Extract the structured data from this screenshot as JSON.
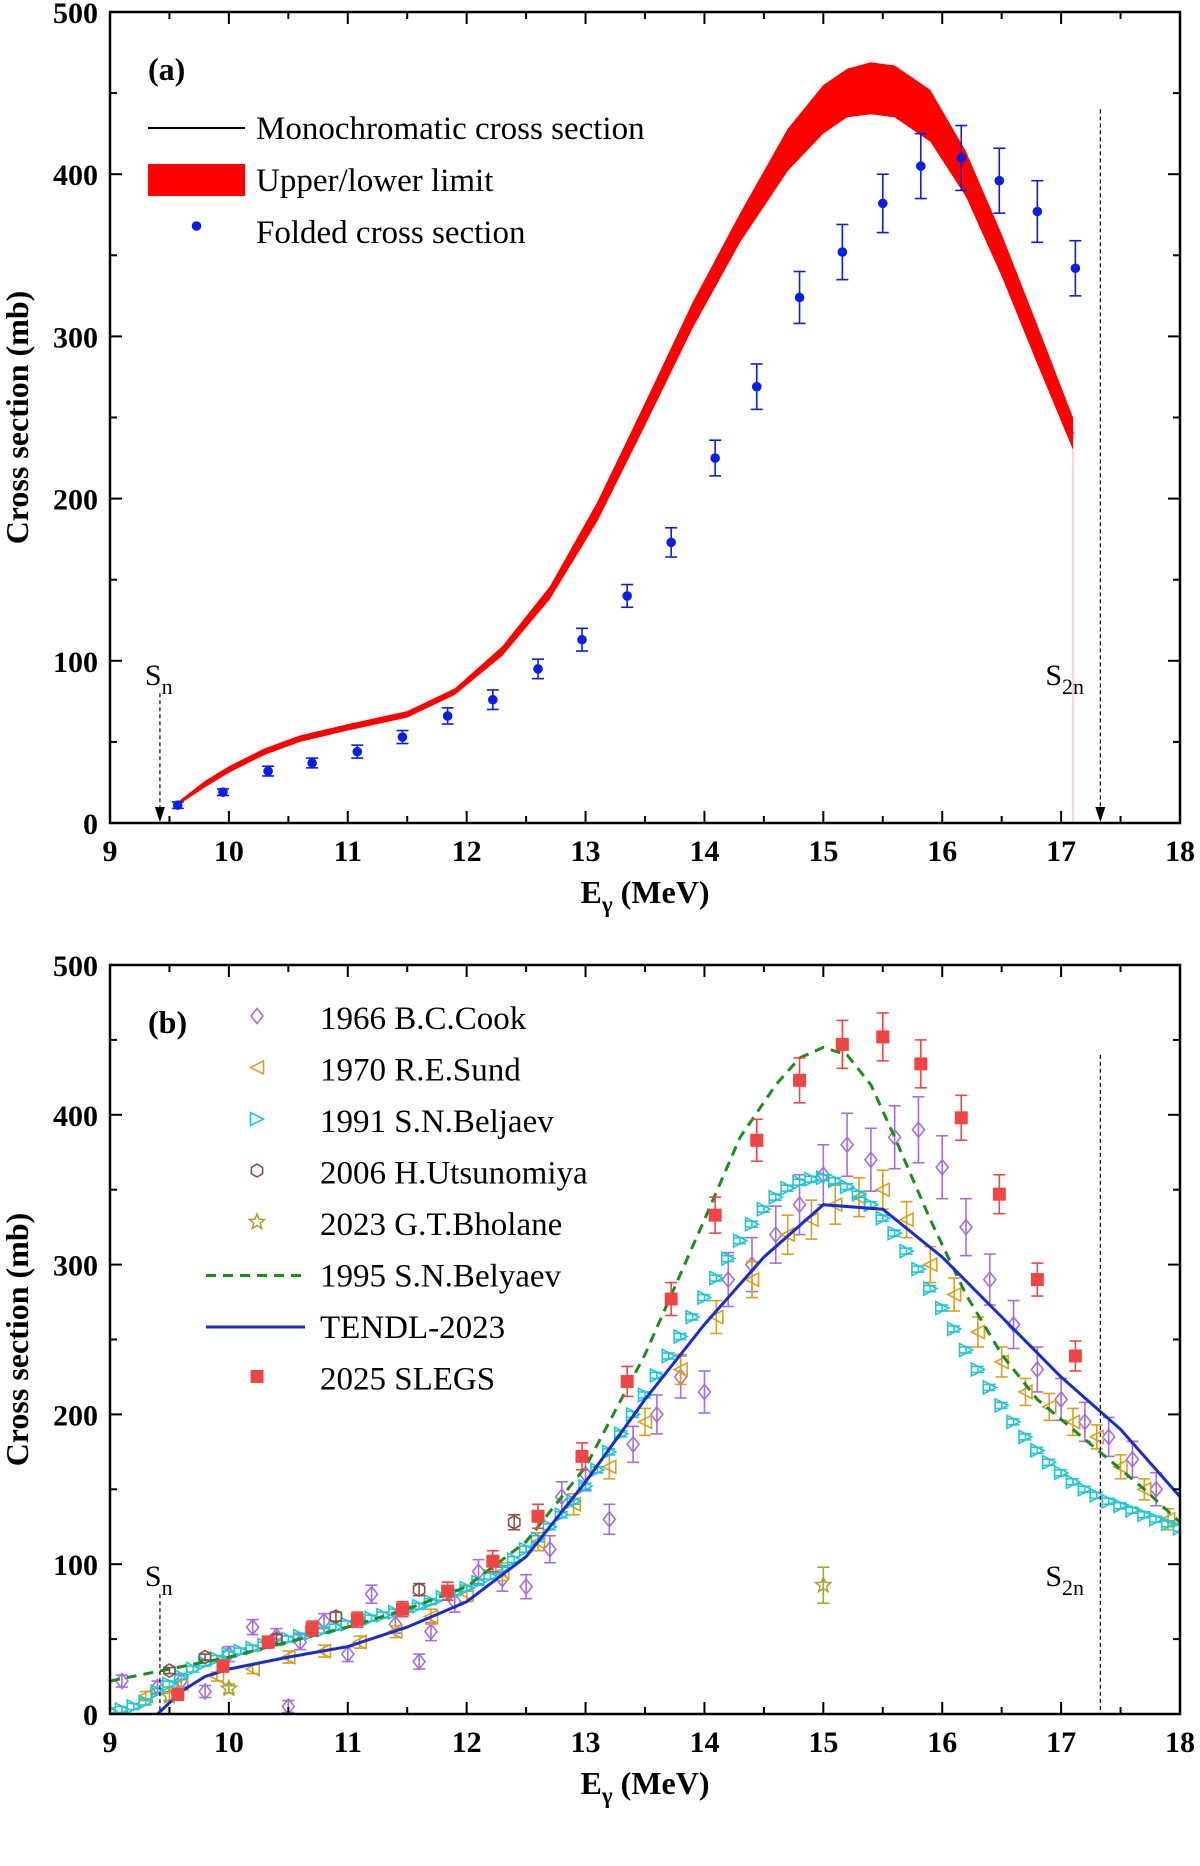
{
  "chart_data": [
    {
      "type": "line",
      "panel_label": "(a)",
      "xlabel": "E",
      "xlabel_sub": "γ",
      "xlabel_unit": " (MeV)",
      "ylabel": "Cross section (mb)",
      "xlim": [
        9,
        18
      ],
      "ylim": [
        0,
        500
      ],
      "xticks": [
        9,
        10,
        11,
        12,
        13,
        14,
        15,
        16,
        17,
        18
      ],
      "yticks": [
        0,
        100,
        200,
        300,
        400,
        500
      ],
      "legend_position": "top-left",
      "series": [
        {
          "name": "Monochromatic cross section",
          "style": "line",
          "color": "#000000",
          "x": [
            9.57,
            9.8,
            10.0,
            10.3,
            10.6,
            11.0,
            11.5,
            11.9,
            12.3,
            12.7,
            13.1,
            13.5,
            13.9,
            14.3,
            14.7,
            15.0,
            15.2,
            15.4,
            15.6,
            15.9,
            16.2,
            16.5,
            16.8,
            17.1
          ],
          "y": [
            12,
            24,
            33,
            44,
            52,
            59,
            67,
            81,
            106,
            142,
            192,
            252,
            313,
            367,
            415,
            440,
            450,
            453,
            451,
            436,
            400,
            350,
            295,
            240
          ]
        },
        {
          "name": "Upper/lower limit",
          "style": "band",
          "color": "#ff0000",
          "x": [
            9.57,
            9.8,
            10.0,
            10.3,
            10.6,
            11.0,
            11.5,
            11.9,
            12.3,
            12.7,
            13.1,
            13.5,
            13.9,
            14.3,
            14.7,
            15.0,
            15.2,
            15.4,
            15.6,
            15.9,
            16.2,
            16.5,
            16.8,
            17.1
          ],
          "lower": [
            11,
            22,
            31,
            42,
            50,
            57,
            65,
            79,
            103,
            138,
            186,
            245,
            305,
            358,
            402,
            425,
            435,
            437,
            435,
            420,
            386,
            337,
            283,
            230
          ],
          "upper": [
            13,
            26,
            35,
            46,
            54,
            61,
            69,
            83,
            109,
            146,
            198,
            259,
            321,
            376,
            428,
            455,
            465,
            469,
            467,
            452,
            414,
            363,
            307,
            250
          ]
        },
        {
          "name": "Folded cross section",
          "style": "points-errorbar",
          "color": "#0a1ee6",
          "x": [
            9.57,
            9.95,
            10.33,
            10.7,
            11.08,
            11.46,
            11.84,
            12.22,
            12.6,
            12.97,
            13.35,
            13.72,
            14.09,
            14.44,
            14.8,
            15.16,
            15.5,
            15.82,
            16.16,
            16.48,
            16.8,
            17.12
          ],
          "y": [
            11,
            19,
            32,
            37,
            44,
            53,
            66,
            76,
            95,
            113,
            140,
            173,
            225,
            269,
            324,
            352,
            382,
            405,
            410,
            396,
            377,
            342
          ],
          "err": [
            2,
            2,
            3,
            3,
            4,
            4,
            5,
            6,
            6,
            7,
            7,
            9,
            11,
            14,
            16,
            17,
            18,
            20,
            20,
            20,
            19,
            17
          ]
        }
      ],
      "annotations": [
        {
          "text": "S",
          "sub": "n",
          "x": 9.42,
          "arrow_from_y": 80,
          "arrow_to_y": 0
        },
        {
          "text": "S",
          "sub": "2n",
          "x": 17.33,
          "arrow_from_y": 440,
          "arrow_to_y": 0
        }
      ]
    },
    {
      "type": "scatter",
      "panel_label": "(b)",
      "xlabel": "E",
      "xlabel_sub": "γ",
      "xlabel_unit": " (MeV)",
      "ylabel": "Cross section (mb)",
      "xlim": [
        9,
        18
      ],
      "ylim": [
        0,
        500
      ],
      "xticks": [
        9,
        10,
        11,
        12,
        13,
        14,
        15,
        16,
        17,
        18
      ],
      "yticks": [
        0,
        100,
        200,
        300,
        400,
        500
      ],
      "legend_position": "top-left",
      "series": [
        {
          "name": "1966 B.C.Cook",
          "marker": "diamond",
          "color": "#a66de0",
          "x": [
            9.1,
            9.4,
            9.6,
            9.8,
            10.0,
            10.2,
            10.4,
            10.5,
            10.6,
            10.8,
            11.0,
            11.2,
            11.4,
            11.6,
            11.7,
            11.9,
            12.1,
            12.3,
            12.5,
            12.7,
            12.8,
            13.0,
            13.2,
            13.4,
            13.6,
            13.8,
            14.0,
            14.2,
            14.4,
            14.6,
            14.8,
            15.0,
            15.2,
            15.4,
            15.6,
            15.8,
            16.0,
            16.2,
            16.4,
            16.6,
            16.8,
            17.0,
            17.2,
            17.4,
            17.6,
            17.8
          ],
          "y": [
            22,
            18,
            22,
            15,
            40,
            58,
            52,
            5,
            48,
            62,
            40,
            80,
            60,
            35,
            55,
            75,
            95,
            90,
            85,
            110,
            145,
            160,
            130,
            180,
            200,
            225,
            215,
            290,
            300,
            320,
            340,
            360,
            380,
            370,
            385,
            390,
            365,
            325,
            290,
            260,
            230,
            210,
            195,
            185,
            170,
            150
          ],
          "err": [
            4,
            4,
            4,
            4,
            5,
            5,
            5,
            4,
            5,
            5,
            5,
            6,
            6,
            5,
            6,
            7,
            8,
            8,
            8,
            9,
            10,
            11,
            10,
            12,
            13,
            14,
            14,
            18,
            18,
            19,
            20,
            20,
            21,
            21,
            21,
            22,
            21,
            19,
            17,
            16,
            15,
            14,
            13,
            13,
            12,
            11
          ]
        },
        {
          "name": "1970 R.E.Sund",
          "marker": "triangle-left",
          "color": "#d9a01f",
          "x": [
            9.3,
            9.6,
            9.9,
            10.2,
            10.5,
            10.8,
            11.1,
            11.4,
            11.7,
            12.0,
            12.3,
            12.6,
            12.9,
            13.2,
            13.5,
            13.8,
            14.1,
            14.4,
            14.7,
            14.9,
            15.1,
            15.3,
            15.5,
            15.7,
            15.9,
            16.1,
            16.3,
            16.5,
            16.7,
            16.9,
            17.1,
            17.3,
            17.5,
            17.7,
            17.9
          ],
          "y": [
            12,
            20,
            25,
            30,
            38,
            42,
            48,
            55,
            65,
            80,
            95,
            115,
            140,
            165,
            195,
            230,
            265,
            290,
            320,
            330,
            340,
            345,
            350,
            330,
            300,
            280,
            255,
            235,
            215,
            205,
            195,
            185,
            165,
            150,
            130
          ],
          "err": [
            3,
            3,
            3,
            3,
            4,
            4,
            4,
            4,
            5,
            5,
            6,
            6,
            7,
            8,
            9,
            10,
            11,
            12,
            13,
            13,
            13,
            13,
            13,
            12,
            12,
            11,
            10,
            10,
            9,
            9,
            9,
            8,
            8,
            7,
            7
          ]
        },
        {
          "name": "1991 S.N.Beljaev",
          "marker": "triangle-right",
          "color": "#20c7d0",
          "x": [
            9.0,
            9.1,
            9.2,
            9.3,
            9.4,
            9.5,
            9.6,
            9.7,
            9.8,
            9.9,
            10.0,
            10.1,
            10.2,
            10.3,
            10.4,
            10.5,
            10.6,
            10.7,
            10.8,
            10.9,
            11.0,
            11.1,
            11.2,
            11.3,
            11.4,
            11.5,
            11.6,
            11.7,
            11.8,
            11.9,
            12.0,
            12.1,
            12.2,
            12.3,
            12.4,
            12.5,
            12.6,
            12.7,
            12.8,
            12.9,
            13.0,
            13.1,
            13.2,
            13.3,
            13.4,
            13.5,
            13.6,
            13.7,
            13.8,
            13.9,
            14.0,
            14.1,
            14.2,
            14.3,
            14.4,
            14.5,
            14.6,
            14.7,
            14.8,
            14.9,
            15.0,
            15.1,
            15.2,
            15.3,
            15.4,
            15.5,
            15.6,
            15.7,
            15.8,
            15.9,
            16.0,
            16.1,
            16.2,
            16.3,
            16.4,
            16.5,
            16.6,
            16.7,
            16.8,
            16.9,
            17.0,
            17.1,
            17.2,
            17.3,
            17.4,
            17.5,
            17.6,
            17.7,
            17.8,
            17.9,
            18.0
          ],
          "y": [
            2,
            3,
            5,
            8,
            15,
            20,
            25,
            30,
            34,
            37,
            40,
            42,
            44,
            46,
            48,
            50,
            52,
            54,
            56,
            58,
            60,
            62,
            64,
            66,
            68,
            70,
            72,
            75,
            78,
            81,
            84,
            88,
            92,
            97,
            103,
            110,
            117,
            125,
            133,
            142,
            152,
            163,
            175,
            187,
            200,
            213,
            226,
            239,
            252,
            265,
            278,
            291,
            304,
            316,
            327,
            337,
            345,
            351,
            355,
            357,
            358,
            356,
            352,
            347,
            340,
            331,
            321,
            309,
            297,
            284,
            271,
            257,
            243,
            230,
            218,
            206,
            195,
            185,
            176,
            168,
            161,
            155,
            150,
            146,
            142,
            139,
            136,
            133,
            130,
            127,
            124
          ],
          "err": [
            2,
            2,
            2,
            2,
            2,
            2,
            2,
            2,
            2,
            2,
            2,
            2,
            2,
            2,
            2,
            2,
            2,
            2,
            2,
            2,
            2,
            2,
            2,
            2,
            2,
            2,
            2,
            2,
            2,
            2,
            2,
            2,
            2,
            2,
            2,
            2,
            2,
            2,
            2,
            2,
            2,
            2,
            2,
            2,
            2,
            2,
            2,
            2,
            2,
            2,
            2,
            2,
            2,
            2,
            2,
            2,
            2,
            2,
            2,
            2,
            2,
            2,
            2,
            2,
            2,
            2,
            2,
            2,
            2,
            2,
            2,
            2,
            2,
            2,
            2,
            2,
            2,
            2,
            2,
            2,
            2,
            2,
            2,
            2,
            2,
            2,
            2,
            2,
            2,
            2,
            2
          ]
        },
        {
          "name": "2006 H.Utsunomiya",
          "marker": "hexagon",
          "color": "#8a4f4a",
          "x": [
            9.5,
            9.8,
            10.4,
            10.9,
            11.6,
            12.4
          ],
          "y": [
            29,
            38,
            50,
            65,
            83,
            128
          ],
          "err": [
            2,
            2,
            3,
            3,
            4,
            5
          ]
        },
        {
          "name": "2023 G.T.Bholane",
          "marker": "star",
          "color": "#a8a326",
          "x": [
            9.5,
            10.0,
            15.0
          ],
          "y": [
            12,
            17,
            86
          ],
          "err": [
            3,
            3,
            12
          ]
        },
        {
          "name": "1995 S.N.Belyaev",
          "line": "dashed",
          "color": "#1f8a1f",
          "x": [
            9.0,
            9.5,
            10.0,
            10.5,
            11.0,
            11.5,
            12.0,
            12.5,
            13.0,
            13.5,
            14.0,
            14.3,
            14.6,
            14.8,
            15.0,
            15.2,
            15.4,
            15.6,
            15.9,
            16.2,
            16.5,
            16.8,
            17.1,
            17.4,
            17.7,
            18.0
          ],
          "y": [
            22,
            30,
            38,
            48,
            58,
            70,
            85,
            115,
            165,
            240,
            330,
            385,
            420,
            438,
            445,
            440,
            420,
            385,
            330,
            280,
            240,
            210,
            190,
            170,
            150,
            128
          ]
        },
        {
          "name": "TENDL-2023",
          "line": "solid",
          "color": "#1a2ccc",
          "x": [
            9.4,
            9.6,
            9.8,
            10.0,
            10.5,
            11.0,
            11.5,
            12.0,
            12.5,
            13.0,
            13.5,
            14.0,
            14.5,
            15.0,
            15.5,
            16.0,
            16.5,
            17.0,
            17.5,
            18.0
          ],
          "y": [
            0,
            15,
            25,
            30,
            38,
            45,
            58,
            75,
            105,
            155,
            210,
            260,
            305,
            340,
            337,
            305,
            265,
            225,
            190,
            145
          ]
        },
        {
          "name": "2025 SLEGS",
          "marker": "square",
          "color": "#f04545",
          "x": [
            9.57,
            9.95,
            10.33,
            10.7,
            11.08,
            11.46,
            11.84,
            12.22,
            12.6,
            12.97,
            13.35,
            13.72,
            14.09,
            14.44,
            14.8,
            15.16,
            15.5,
            15.82,
            16.16,
            16.48,
            16.8,
            17.12
          ],
          "y": [
            13,
            32,
            48,
            57,
            63,
            70,
            82,
            102,
            132,
            172,
            222,
            277,
            333,
            383,
            423,
            447,
            452,
            434,
            398,
            347,
            290,
            239
          ],
          "err": [
            3,
            4,
            4,
            5,
            5,
            5,
            6,
            7,
            8,
            9,
            10,
            11,
            12,
            14,
            15,
            16,
            16,
            16,
            15,
            13,
            11,
            10
          ]
        }
      ],
      "annotations": [
        {
          "text": "S",
          "sub": "n",
          "x": 9.42,
          "line_to_y": 80
        },
        {
          "text": "S",
          "sub": "2n",
          "x": 17.33,
          "line_to_y": 440
        }
      ]
    }
  ]
}
